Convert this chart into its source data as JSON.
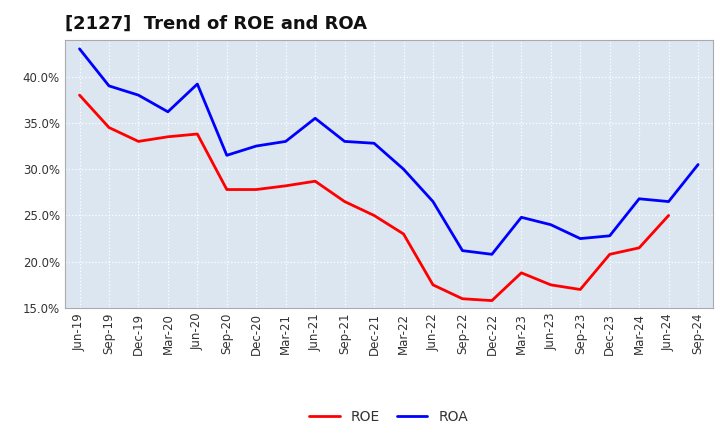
{
  "title": "[2127]  Trend of ROE and ROA",
  "x_labels": [
    "Jun-19",
    "Sep-19",
    "Dec-19",
    "Mar-20",
    "Jun-20",
    "Sep-20",
    "Dec-20",
    "Mar-21",
    "Jun-21",
    "Sep-21",
    "Dec-21",
    "Mar-22",
    "Jun-22",
    "Sep-22",
    "Dec-22",
    "Mar-23",
    "Jun-23",
    "Sep-23",
    "Dec-23",
    "Mar-24",
    "Jun-24",
    "Sep-24"
  ],
  "ROE": [
    38.0,
    34.5,
    33.0,
    33.5,
    33.8,
    27.8,
    27.8,
    28.2,
    28.7,
    26.5,
    25.0,
    23.0,
    17.5,
    16.0,
    15.8,
    18.8,
    17.5,
    17.0,
    20.8,
    21.5,
    25.0,
    null
  ],
  "ROA": [
    43.0,
    39.0,
    38.0,
    36.2,
    39.2,
    31.5,
    32.5,
    33.0,
    35.5,
    33.0,
    32.8,
    30.0,
    26.5,
    21.2,
    20.8,
    24.8,
    24.0,
    22.5,
    22.8,
    26.8,
    26.5,
    30.5
  ],
  "roe_color": "#ff0000",
  "roa_color": "#0000ff",
  "ylim": [
    15.0,
    44.0
  ],
  "yticks": [
    15.0,
    20.0,
    25.0,
    30.0,
    35.0,
    40.0
  ],
  "bg_color": "#ffffff",
  "plot_bg_color": "#dce6f1",
  "grid_color": "#ffffff",
  "line_width": 2.0,
  "title_fontsize": 13,
  "legend_fontsize": 10,
  "tick_fontsize": 8.5
}
